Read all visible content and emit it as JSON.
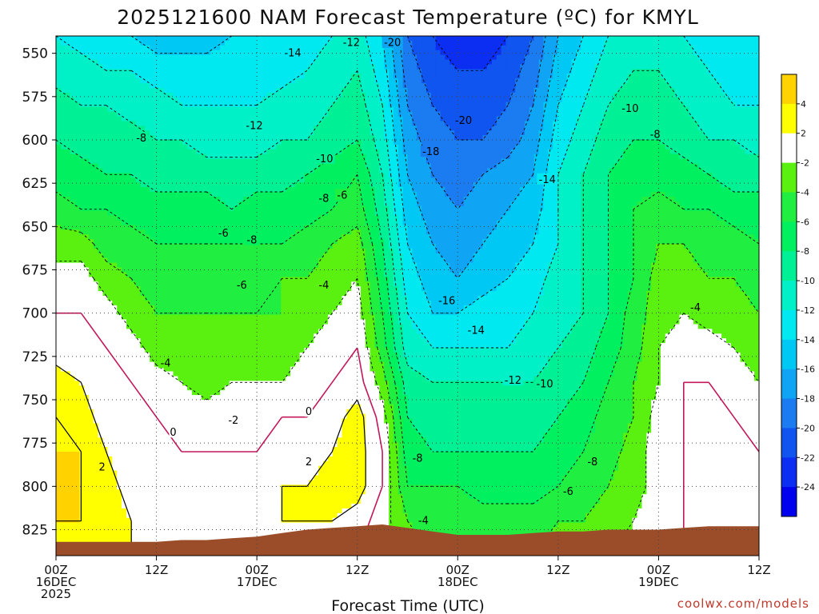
{
  "title": "2025121600 NAM Forecast Temperature (ºC) for KMYL",
  "credit": "coolwx.com/models",
  "colors": {
    "bands": [
      "#0000ee",
      "#0b2ef2",
      "#1155f0",
      "#1a7cf0",
      "#10a4f5",
      "#00c8f5",
      "#00e8f0",
      "#00f0c8",
      "#00f096",
      "#00f060",
      "#20ee40",
      "#5af010",
      "#ffffff",
      "#ffff00",
      "#ffd200"
    ],
    "ground": "#9b4d2a",
    "freezing_line": "#c2185b"
  },
  "chart_data": {
    "type": "contour",
    "xlabel": "Forecast Time (UTC)",
    "ylabel": "",
    "x_ticks": [
      {
        "line1": "00Z",
        "line2": "16DEC",
        "line3": "2025"
      },
      {
        "line1": "12Z",
        "line2": "",
        "line3": ""
      },
      {
        "line1": "00Z",
        "line2": "17DEC",
        "line3": ""
      },
      {
        "line1": "12Z",
        "line2": "",
        "line3": ""
      },
      {
        "line1": "00Z",
        "line2": "18DEC",
        "line3": ""
      },
      {
        "line1": "12Z",
        "line2": "",
        "line3": ""
      },
      {
        "line1": "00Z",
        "line2": "19DEC",
        "line3": ""
      },
      {
        "line1": "12Z",
        "line2": "",
        "line3": ""
      }
    ],
    "x_hours": [
      0,
      12,
      24,
      36,
      48,
      60,
      72,
      84
    ],
    "xlim": [
      0,
      84
    ],
    "y_ticks": [
      550,
      575,
      600,
      625,
      650,
      675,
      700,
      725,
      750,
      775,
      800,
      825
    ],
    "ylim": [
      540,
      840
    ],
    "grid": true,
    "colorbar_ticks": [
      "4",
      "2",
      "-2",
      "-4",
      "-6",
      "-8",
      "-10",
      "-12",
      "-14",
      "-16",
      "-18",
      "-20",
      "-22",
      "-24"
    ],
    "colorbar_bounds": [
      -26,
      -24,
      -22,
      -20,
      -18,
      -16,
      -14,
      -12,
      -10,
      -8,
      -6,
      -4,
      -2,
      2,
      4,
      6
    ],
    "times": [
      0,
      3,
      6,
      9,
      12,
      15,
      18,
      21,
      24,
      27,
      30,
      33,
      36,
      39,
      42,
      45,
      48,
      51,
      54,
      57,
      60,
      63,
      66,
      69,
      72,
      75,
      78,
      81,
      84
    ],
    "levels": [
      540,
      560,
      580,
      600,
      620,
      640,
      660,
      680,
      700,
      720,
      740,
      760,
      780,
      800,
      820,
      840
    ],
    "temperature": [
      [
        -12,
        -13,
        -13,
        -14,
        -15,
        -15,
        -15,
        -14,
        -14,
        -14,
        -13,
        -12,
        -11,
        -14,
        -20,
        -22,
        -24,
        -24,
        -22,
        -20,
        -16,
        -14,
        -12,
        -11,
        -11,
        -12,
        -13,
        -14,
        -14
      ],
      [
        -11,
        -11,
        -12,
        -12,
        -13,
        -13,
        -13,
        -13,
        -13,
        -13,
        -12,
        -11,
        -10,
        -13,
        -19,
        -21,
        -22,
        -22,
        -21,
        -19,
        -15,
        -13,
        -11,
        -10,
        -10,
        -11,
        -12,
        -13,
        -13
      ],
      [
        -9,
        -10,
        -10,
        -11,
        -11,
        -12,
        -12,
        -12,
        -12,
        -11,
        -11,
        -10,
        -9,
        -12,
        -18,
        -20,
        -21,
        -21,
        -20,
        -18,
        -14,
        -12,
        -10,
        -9,
        -9,
        -10,
        -11,
        -12,
        -12
      ],
      [
        -8,
        -9,
        -9,
        -9,
        -10,
        -10,
        -11,
        -11,
        -11,
        -10,
        -10,
        -9,
        -8,
        -11,
        -17,
        -19,
        -20,
        -20,
        -19,
        -17,
        -13,
        -11,
        -9,
        -8,
        -8,
        -9,
        -10,
        -10,
        -11
      ],
      [
        -7,
        -7,
        -8,
        -8,
        -9,
        -9,
        -9,
        -9,
        -9,
        -9,
        -8,
        -7,
        -6,
        -10,
        -16,
        -18,
        -19,
        -18,
        -17,
        -16,
        -12,
        -10,
        -8,
        -7,
        -7,
        -7,
        -8,
        -9,
        -9
      ],
      [
        -5,
        -6,
        -6,
        -7,
        -7,
        -7,
        -7,
        -8,
        -7,
        -7,
        -7,
        -6,
        -5,
        -9,
        -15,
        -17,
        -18,
        -17,
        -16,
        -15,
        -12,
        -10,
        -8,
        -6,
        -5,
        -6,
        -6,
        -7,
        -7
      ],
      [
        -3,
        -3,
        -5,
        -5,
        -6,
        -6,
        -6,
        -6,
        -6,
        -6,
        -5,
        -4,
        -3,
        -8,
        -14,
        -16,
        -17,
        -16,
        -15,
        -14,
        -12,
        -10,
        -8,
        -6,
        -4,
        -4,
        -5,
        -5,
        -6
      ],
      [
        -1,
        -1,
        -3,
        -4,
        -5,
        -5,
        -5,
        -5,
        -5,
        -4,
        -4,
        -3,
        -2,
        -7,
        -13,
        -15,
        -16,
        -15,
        -14,
        -13,
        -11,
        -10,
        -8,
        -6,
        -3,
        -3,
        -4,
        -4,
        -5
      ],
      [
        0,
        0,
        -1,
        -3,
        -4,
        -4,
        -4,
        -4,
        -4,
        -4,
        -3,
        -2,
        -1,
        -6,
        -12,
        -14,
        -14,
        -13,
        -13,
        -12,
        -11,
        -10,
        -8,
        -5,
        -3,
        -2,
        -3,
        -3,
        -4
      ],
      [
        1,
        0,
        0,
        -1,
        -3,
        -3,
        -4,
        -4,
        -3,
        -3,
        -2,
        -1,
        0,
        -5,
        -11,
        -12,
        -12,
        -12,
        -12,
        -11,
        -10,
        -9,
        -7,
        -5,
        -2,
        -1,
        -1,
        -2,
        -3
      ],
      [
        3,
        2,
        0,
        0,
        -1,
        -2,
        -3,
        -2,
        -2,
        -2,
        -1,
        0,
        1,
        -3,
        -9,
        -10,
        -10,
        -10,
        -10,
        -10,
        -9,
        -8,
        -6,
        -4,
        -2,
        0,
        0,
        -1,
        -2
      ],
      [
        4,
        3,
        1,
        0,
        0,
        -1,
        -1,
        -1,
        -1,
        0,
        0,
        1,
        3,
        -1,
        -8,
        -9,
        -9,
        -9,
        -9,
        -9,
        -8,
        -7,
        -5,
        -4,
        -1,
        0,
        0,
        0,
        -1
      ],
      [
        4,
        4,
        2,
        1,
        0,
        0,
        0,
        0,
        0,
        1,
        1,
        2,
        3,
        0,
        -7,
        -8,
        -8,
        -8,
        -8,
        -8,
        -7,
        -6,
        -5,
        -3,
        -1,
        0,
        0,
        0,
        0
      ],
      [
        5,
        4,
        3,
        1,
        0,
        0,
        0,
        0,
        1,
        2,
        2,
        3,
        3,
        0,
        -6,
        -6,
        -6,
        -7,
        -7,
        -7,
        -6,
        -5,
        -4,
        -3,
        -1,
        0,
        0,
        0,
        0
      ],
      [
        4,
        4,
        3,
        2,
        1,
        0,
        0,
        1,
        1,
        2,
        2,
        2,
        1,
        -1,
        -4,
        -5,
        -5,
        -5,
        -5,
        -5,
        -4,
        -4,
        -3,
        -2,
        -1,
        0,
        0,
        0,
        0
      ],
      [
        3,
        3,
        3,
        2,
        1,
        0,
        0,
        1,
        1,
        1,
        1,
        1,
        0,
        -1,
        -3,
        -4,
        -4,
        -4,
        -4,
        -4,
        -3,
        -3,
        -2,
        -2,
        -1,
        0,
        0,
        0,
        0
      ]
    ],
    "ground_pressure": [
      832,
      832,
      832,
      832,
      832,
      831,
      831,
      830,
      829,
      827,
      825,
      824,
      823,
      822,
      824,
      826,
      828,
      828,
      828,
      827,
      826,
      826,
      825,
      825,
      825,
      824,
      823,
      823,
      823
    ],
    "contour_labels": [
      {
        "text": "-12",
        "t": 35.3,
        "p": 544
      },
      {
        "text": "-20",
        "t": 40.2,
        "p": 544
      },
      {
        "text": "-14",
        "t": 28.3,
        "p": 550
      },
      {
        "text": "-10",
        "t": 68.6,
        "p": 582
      },
      {
        "text": "-20",
        "t": 48.7,
        "p": 589
      },
      {
        "text": "-12",
        "t": 23.7,
        "p": 592
      },
      {
        "text": "-8",
        "t": 10.2,
        "p": 599
      },
      {
        "text": "-8",
        "t": 71.6,
        "p": 597
      },
      {
        "text": "-18",
        "t": 44.8,
        "p": 607
      },
      {
        "text": "-10",
        "t": 32.1,
        "p": 611
      },
      {
        "text": "-14",
        "t": 58.7,
        "p": 623
      },
      {
        "text": "-8",
        "t": 32.0,
        "p": 634
      },
      {
        "text": "-6",
        "t": 34.2,
        "p": 632
      },
      {
        "text": "-6",
        "t": 20.0,
        "p": 654
      },
      {
        "text": "-8",
        "t": 23.4,
        "p": 658
      },
      {
        "text": "-6",
        "t": 22.2,
        "p": 684
      },
      {
        "text": "-4",
        "t": 32.0,
        "p": 684
      },
      {
        "text": "-16",
        "t": 46.7,
        "p": 693
      },
      {
        "text": "-4",
        "t": 76.4,
        "p": 697
      },
      {
        "text": "-14",
        "t": 50.2,
        "p": 710
      },
      {
        "text": "-4",
        "t": 13.1,
        "p": 729
      },
      {
        "text": "-12",
        "t": 54.6,
        "p": 739
      },
      {
        "text": "-10",
        "t": 58.4,
        "p": 741
      },
      {
        "text": "0",
        "t": 30.2,
        "p": 757
      },
      {
        "text": "-2",
        "t": 21.2,
        "p": 762
      },
      {
        "text": "0",
        "t": 14.0,
        "p": 769
      },
      {
        "text": "-8",
        "t": 43.2,
        "p": 784
      },
      {
        "text": "-8",
        "t": 64.1,
        "p": 786
      },
      {
        "text": "2",
        "t": 5.5,
        "p": 789
      },
      {
        "text": "2",
        "t": 30.2,
        "p": 786
      },
      {
        "text": "-6",
        "t": 61.2,
        "p": 803
      },
      {
        "text": "-4",
        "t": 43.9,
        "p": 820
      }
    ]
  }
}
